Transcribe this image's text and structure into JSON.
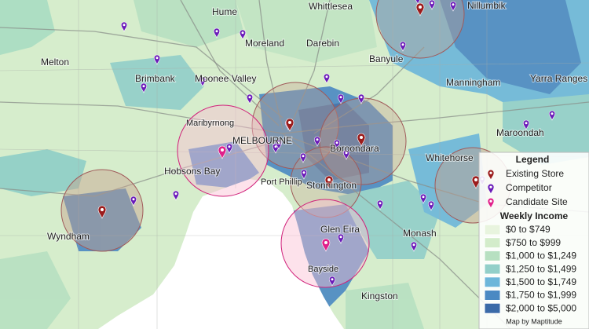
{
  "map": {
    "places": [
      "Hume",
      "Whittlesea",
      "Nillumbik",
      "Melton",
      "Moreland",
      "Darebin",
      "Banyule",
      "Brimbank",
      "Moonee Valley",
      "Manningham",
      "Yarra Ranges",
      "Maribyrnong",
      "Maroondah",
      "MELBOURNE",
      "Boroondara",
      "Whitehorse",
      "Hobsons Bay",
      "Port Phillip",
      "Stonnington",
      "Wyndham",
      "Glen Eira",
      "Monash",
      "Bayside",
      "Kingston"
    ],
    "legend": {
      "title": "Legend",
      "items": [
        {
          "label": "Existing Store",
          "color": "#9b1c1c"
        },
        {
          "label": "Competitor",
          "color": "#6a1bb8"
        },
        {
          "label": "Candidate Site",
          "color": "#e0208a"
        }
      ],
      "income_title": "Weekly Income",
      "income_classes": [
        {
          "label": "$0 to $749",
          "color": "#e8f4de"
        },
        {
          "label": "$750 to $999",
          "color": "#d3ecca"
        },
        {
          "label": "$1,000 to $1,249",
          "color": "#b7e0c1"
        },
        {
          "label": "$1,250 to $1,499",
          "color": "#92cfc9"
        },
        {
          "label": "$1,500 to $1,749",
          "color": "#6cb6da"
        },
        {
          "label": "$1,750 to $1,999",
          "color": "#4b89c3"
        },
        {
          "label": "$2,000 to $5,000",
          "color": "#3b6aa8"
        }
      ]
    },
    "credit": "Map by Maptitude"
  }
}
